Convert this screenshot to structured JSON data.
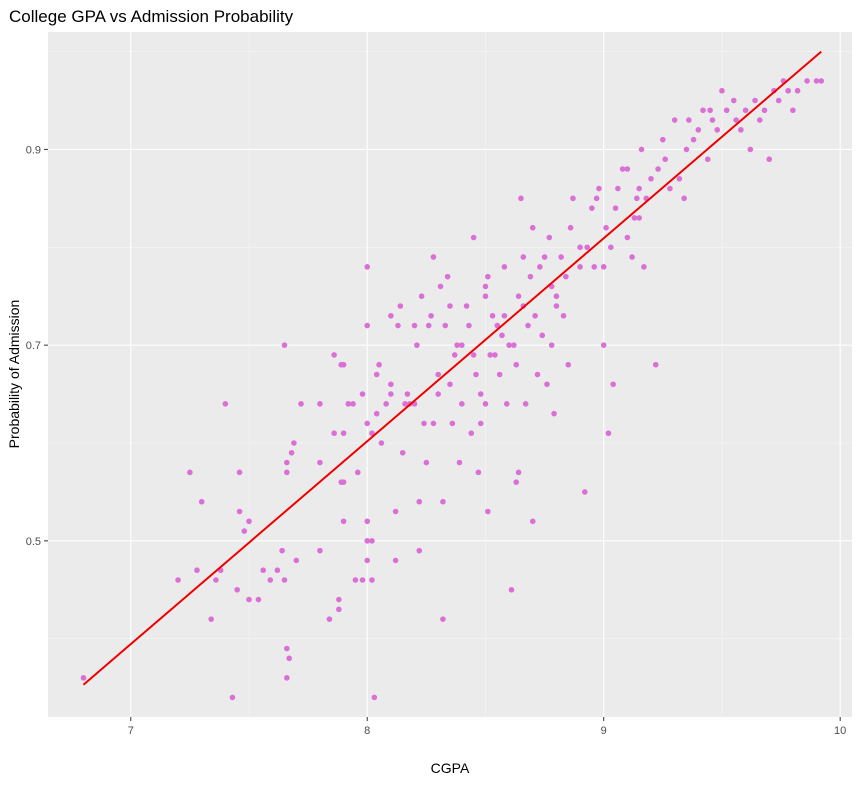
{
  "chart_data": {
    "type": "scatter",
    "title": "College GPA vs Admission Probability",
    "xlabel": "CGPA",
    "ylabel": "Probability of Admission",
    "xlim": [
      6.65,
      10.05
    ],
    "ylim": [
      0.32,
      1.02
    ],
    "x_ticks": [
      7,
      8,
      9,
      10
    ],
    "x_tick_labels": [
      "7",
      "8",
      "9",
      "10"
    ],
    "y_ticks": [
      0.5,
      0.7,
      0.9
    ],
    "y_tick_labels": [
      "0.5",
      "0.7",
      "0.9"
    ],
    "grid": true,
    "legend": "none",
    "colors": {
      "panel_background": "#ebebeb",
      "grid_major": "#ffffff",
      "grid_minor": "#f5f5f5",
      "points": "#da70d6",
      "fit_line": "#ee0000"
    },
    "fit_line": {
      "x": [
        6.8,
        9.92
      ],
      "y": [
        0.353,
        1.0
      ]
    },
    "series": [
      {
        "points": [
          [
            6.8,
            0.36
          ],
          [
            7.2,
            0.46
          ],
          [
            7.25,
            0.57
          ],
          [
            7.28,
            0.47
          ],
          [
            7.3,
            0.54
          ],
          [
            7.34,
            0.42
          ],
          [
            7.36,
            0.46
          ],
          [
            7.38,
            0.47
          ],
          [
            7.4,
            0.64
          ],
          [
            7.43,
            0.34
          ],
          [
            7.45,
            0.45
          ],
          [
            7.46,
            0.53
          ],
          [
            7.46,
            0.57
          ],
          [
            7.48,
            0.51
          ],
          [
            7.5,
            0.44
          ],
          [
            7.5,
            0.52
          ],
          [
            7.54,
            0.44
          ],
          [
            7.56,
            0.47
          ],
          [
            7.59,
            0.46
          ],
          [
            7.62,
            0.47
          ],
          [
            7.64,
            0.49
          ],
          [
            7.65,
            0.7
          ],
          [
            7.65,
            0.46
          ],
          [
            7.66,
            0.39
          ],
          [
            7.66,
            0.36
          ],
          [
            7.66,
            0.58
          ],
          [
            7.66,
            0.57
          ],
          [
            7.67,
            0.38
          ],
          [
            7.68,
            0.59
          ],
          [
            7.69,
            0.6
          ],
          [
            7.7,
            0.48
          ],
          [
            7.72,
            0.64
          ],
          [
            7.8,
            0.58
          ],
          [
            7.8,
            0.49
          ],
          [
            7.8,
            0.64
          ],
          [
            7.84,
            0.42
          ],
          [
            7.86,
            0.61
          ],
          [
            7.86,
            0.69
          ],
          [
            7.88,
            0.43
          ],
          [
            7.88,
            0.44
          ],
          [
            7.89,
            0.56
          ],
          [
            7.89,
            0.68
          ],
          [
            7.9,
            0.52
          ],
          [
            7.9,
            0.61
          ],
          [
            7.9,
            0.68
          ],
          [
            7.9,
            0.56
          ],
          [
            7.92,
            0.64
          ],
          [
            7.94,
            0.64
          ],
          [
            7.95,
            0.46
          ],
          [
            7.96,
            0.57
          ],
          [
            7.98,
            0.46
          ],
          [
            7.98,
            0.65
          ],
          [
            8.0,
            0.48
          ],
          [
            8.0,
            0.5
          ],
          [
            8.0,
            0.52
          ],
          [
            8.0,
            0.62
          ],
          [
            8.0,
            0.72
          ],
          [
            8.0,
            0.78
          ],
          [
            8.02,
            0.5
          ],
          [
            8.02,
            0.61
          ],
          [
            8.02,
            0.46
          ],
          [
            8.03,
            0.34
          ],
          [
            8.04,
            0.63
          ],
          [
            8.04,
            0.67
          ],
          [
            8.05,
            0.68
          ],
          [
            8.06,
            0.6
          ],
          [
            8.08,
            0.64
          ],
          [
            8.1,
            0.65
          ],
          [
            8.1,
            0.66
          ],
          [
            8.1,
            0.73
          ],
          [
            8.12,
            0.48
          ],
          [
            8.12,
            0.53
          ],
          [
            8.13,
            0.72
          ],
          [
            8.14,
            0.74
          ],
          [
            8.15,
            0.59
          ],
          [
            8.16,
            0.64
          ],
          [
            8.17,
            0.65
          ],
          [
            8.18,
            0.64
          ],
          [
            8.2,
            0.64
          ],
          [
            8.2,
            0.72
          ],
          [
            8.21,
            0.7
          ],
          [
            8.22,
            0.54
          ],
          [
            8.22,
            0.49
          ],
          [
            8.23,
            0.75
          ],
          [
            8.24,
            0.62
          ],
          [
            8.25,
            0.58
          ],
          [
            8.26,
            0.72
          ],
          [
            8.27,
            0.73
          ],
          [
            8.28,
            0.62
          ],
          [
            8.28,
            0.79
          ],
          [
            8.3,
            0.65
          ],
          [
            8.3,
            0.67
          ],
          [
            8.31,
            0.76
          ],
          [
            8.32,
            0.54
          ],
          [
            8.32,
            0.42
          ],
          [
            8.33,
            0.72
          ],
          [
            8.34,
            0.77
          ],
          [
            8.35,
            0.74
          ],
          [
            8.35,
            0.66
          ],
          [
            8.36,
            0.62
          ],
          [
            8.37,
            0.69
          ],
          [
            8.38,
            0.7
          ],
          [
            8.39,
            0.58
          ],
          [
            8.4,
            0.64
          ],
          [
            8.4,
            0.7
          ],
          [
            8.42,
            0.74
          ],
          [
            8.43,
            0.72
          ],
          [
            8.44,
            0.61
          ],
          [
            8.45,
            0.69
          ],
          [
            8.45,
            0.81
          ],
          [
            8.46,
            0.67
          ],
          [
            8.47,
            0.57
          ],
          [
            8.48,
            0.65
          ],
          [
            8.48,
            0.62
          ],
          [
            8.5,
            0.64
          ],
          [
            8.5,
            0.75
          ],
          [
            8.5,
            0.76
          ],
          [
            8.51,
            0.53
          ],
          [
            8.51,
            0.77
          ],
          [
            8.52,
            0.69
          ],
          [
            8.53,
            0.73
          ],
          [
            8.54,
            0.69
          ],
          [
            8.55,
            0.72
          ],
          [
            8.56,
            0.67
          ],
          [
            8.57,
            0.71
          ],
          [
            8.58,
            0.73
          ],
          [
            8.58,
            0.78
          ],
          [
            8.59,
            0.64
          ],
          [
            8.6,
            0.7
          ],
          [
            8.61,
            0.45
          ],
          [
            8.62,
            0.7
          ],
          [
            8.63,
            0.56
          ],
          [
            8.63,
            0.68
          ],
          [
            8.64,
            0.57
          ],
          [
            8.64,
            0.75
          ],
          [
            8.65,
            0.85
          ],
          [
            8.66,
            0.79
          ],
          [
            8.66,
            0.74
          ],
          [
            8.67,
            0.64
          ],
          [
            8.68,
            0.72
          ],
          [
            8.69,
            0.77
          ],
          [
            8.7,
            0.52
          ],
          [
            8.7,
            0.82
          ],
          [
            8.71,
            0.73
          ],
          [
            8.72,
            0.67
          ],
          [
            8.73,
            0.78
          ],
          [
            8.74,
            0.71
          ],
          [
            8.75,
            0.79
          ],
          [
            8.76,
            0.66
          ],
          [
            8.77,
            0.81
          ],
          [
            8.78,
            0.76
          ],
          [
            8.78,
            0.7
          ],
          [
            8.79,
            0.63
          ],
          [
            8.8,
            0.75
          ],
          [
            8.8,
            0.74
          ],
          [
            8.82,
            0.79
          ],
          [
            8.83,
            0.73
          ],
          [
            8.84,
            0.77
          ],
          [
            8.85,
            0.68
          ],
          [
            8.86,
            0.82
          ],
          [
            8.87,
            0.85
          ],
          [
            8.9,
            0.78
          ],
          [
            8.9,
            0.8
          ],
          [
            8.92,
            0.55
          ],
          [
            8.93,
            0.8
          ],
          [
            8.95,
            0.84
          ],
          [
            8.96,
            0.78
          ],
          [
            8.97,
            0.85
          ],
          [
            8.98,
            0.86
          ],
          [
            9.0,
            0.7
          ],
          [
            9.0,
            0.78
          ],
          [
            9.01,
            0.82
          ],
          [
            9.02,
            0.61
          ],
          [
            9.03,
            0.8
          ],
          [
            9.04,
            0.66
          ],
          [
            9.05,
            0.84
          ],
          [
            9.06,
            0.86
          ],
          [
            9.08,
            0.88
          ],
          [
            9.1,
            0.88
          ],
          [
            9.1,
            0.81
          ],
          [
            9.12,
            0.79
          ],
          [
            9.13,
            0.83
          ],
          [
            9.14,
            0.85
          ],
          [
            9.15,
            0.83
          ],
          [
            9.15,
            0.86
          ],
          [
            9.16,
            0.9
          ],
          [
            9.17,
            0.78
          ],
          [
            9.18,
            0.85
          ],
          [
            9.2,
            0.87
          ],
          [
            9.22,
            0.68
          ],
          [
            9.23,
            0.88
          ],
          [
            9.25,
            0.91
          ],
          [
            9.26,
            0.89
          ],
          [
            9.28,
            0.86
          ],
          [
            9.3,
            0.93
          ],
          [
            9.32,
            0.87
          ],
          [
            9.34,
            0.85
          ],
          [
            9.35,
            0.9
          ],
          [
            9.36,
            0.93
          ],
          [
            9.38,
            0.91
          ],
          [
            9.4,
            0.92
          ],
          [
            9.42,
            0.94
          ],
          [
            9.44,
            0.89
          ],
          [
            9.45,
            0.94
          ],
          [
            9.46,
            0.93
          ],
          [
            9.48,
            0.92
          ],
          [
            9.5,
            0.96
          ],
          [
            9.52,
            0.94
          ],
          [
            9.55,
            0.95
          ],
          [
            9.56,
            0.93
          ],
          [
            9.58,
            0.92
          ],
          [
            9.6,
            0.94
          ],
          [
            9.62,
            0.9
          ],
          [
            9.64,
            0.95
          ],
          [
            9.66,
            0.93
          ],
          [
            9.68,
            0.94
          ],
          [
            9.7,
            0.89
          ],
          [
            9.72,
            0.96
          ],
          [
            9.74,
            0.95
          ],
          [
            9.76,
            0.97
          ],
          [
            9.78,
            0.96
          ],
          [
            9.8,
            0.94
          ],
          [
            9.82,
            0.96
          ],
          [
            9.86,
            0.97
          ],
          [
            9.9,
            0.97
          ],
          [
            9.92,
            0.97
          ]
        ]
      }
    ]
  }
}
